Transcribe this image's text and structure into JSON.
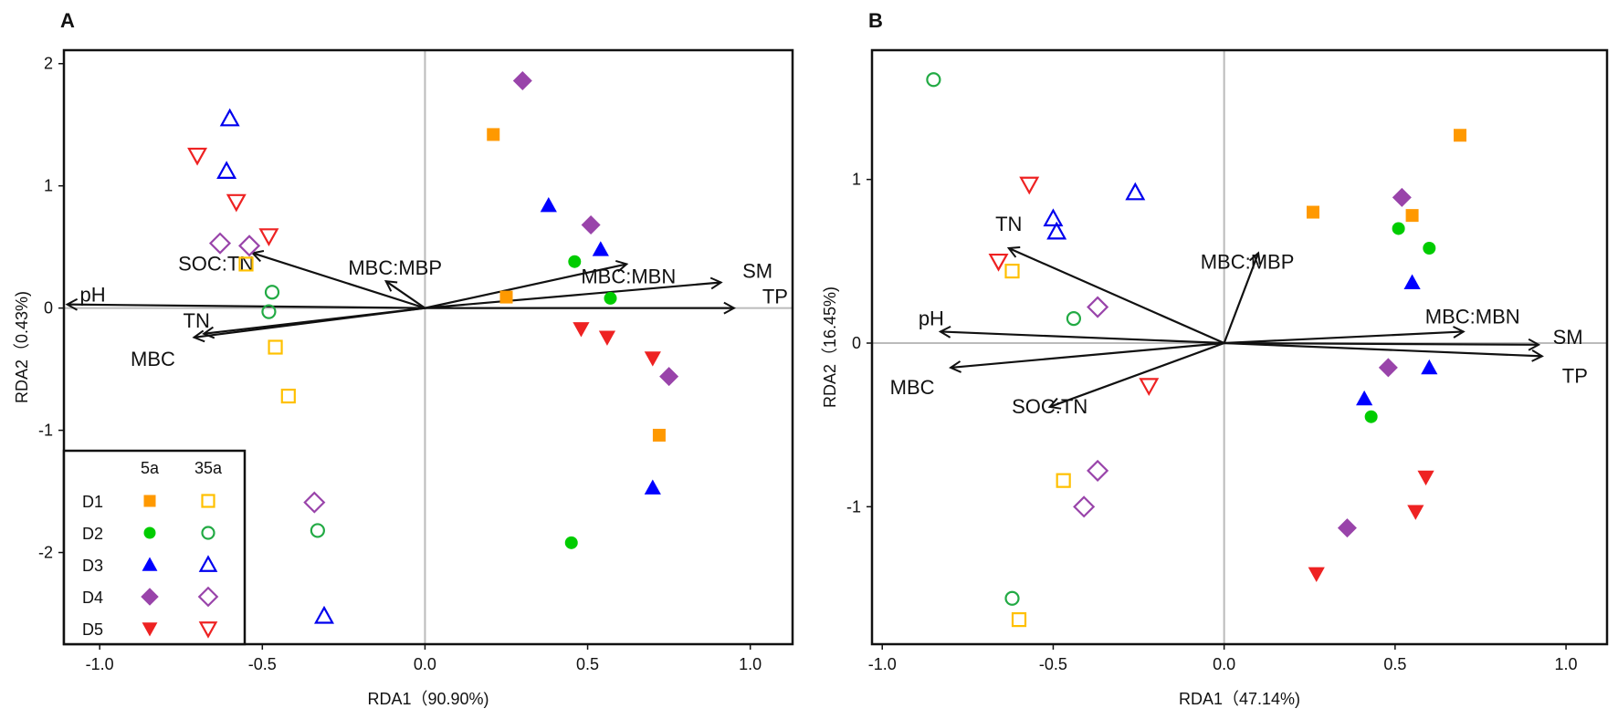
{
  "legend": {
    "col_headers": [
      "5a",
      "35a"
    ],
    "rows": [
      {
        "label": "D1",
        "shape": "square",
        "filled_color": "#FF9900",
        "open_color": "#FFC000"
      },
      {
        "label": "D2",
        "shape": "circle",
        "filled_color": "#00CC00",
        "open_color": "#22AA44"
      },
      {
        "label": "D3",
        "shape": "triangle-up",
        "filled_color": "#0000FF",
        "open_color": "#0000EE"
      },
      {
        "label": "D4",
        "shape": "diamond",
        "filled_color": "#9944AA",
        "open_color": "#9944AA"
      },
      {
        "label": "D5",
        "shape": "triangle-down",
        "filled_color": "#EE2222",
        "open_color": "#EE2222"
      }
    ],
    "placement": "bottom-left of panel A"
  },
  "chart_data": [
    {
      "type": "scatter",
      "panel": "A",
      "xlabel": "RDA1（90.90%)",
      "ylabel": "RDA2（0.43%)",
      "xlim": [
        -1.11,
        1.13
      ],
      "ylim": [
        -2.75,
        2.11
      ],
      "xticks": [
        "-1.0",
        "-0.5",
        "0.0",
        "0.5",
        "1.0"
      ],
      "yticks": [
        "-2",
        "-1",
        "0",
        "1",
        "2"
      ],
      "zero_lines": true,
      "grid": false,
      "series": [
        {
          "group": "D1",
          "age": "5a",
          "points": [
            [
              0.21,
              1.42
            ],
            [
              0.25,
              0.09
            ],
            [
              0.72,
              -1.04
            ]
          ]
        },
        {
          "group": "D1",
          "age": "35a",
          "points": [
            [
              -0.55,
              0.36
            ],
            [
              -0.46,
              -0.32
            ],
            [
              -0.42,
              -0.72
            ]
          ]
        },
        {
          "group": "D2",
          "age": "5a",
          "points": [
            [
              0.46,
              0.38
            ],
            [
              0.57,
              0.08
            ],
            [
              0.45,
              -1.92
            ]
          ]
        },
        {
          "group": "D2",
          "age": "35a",
          "points": [
            [
              -0.47,
              0.13
            ],
            [
              -0.48,
              -0.03
            ],
            [
              -0.33,
              -1.82
            ]
          ]
        },
        {
          "group": "D3",
          "age": "5a",
          "points": [
            [
              0.38,
              0.84
            ],
            [
              0.54,
              0.48
            ],
            [
              0.7,
              -1.47
            ]
          ]
        },
        {
          "group": "D3",
          "age": "35a",
          "points": [
            [
              -0.6,
              1.55
            ],
            [
              -0.61,
              1.12
            ],
            [
              -0.31,
              -2.52
            ]
          ]
        },
        {
          "group": "D4",
          "age": "5a",
          "points": [
            [
              0.3,
              1.86
            ],
            [
              0.51,
              0.68
            ],
            [
              0.75,
              -0.56
            ]
          ]
        },
        {
          "group": "D4",
          "age": "35a",
          "points": [
            [
              -0.63,
              0.53
            ],
            [
              -0.54,
              0.51
            ],
            [
              -0.34,
              -1.59
            ]
          ]
        },
        {
          "group": "D5",
          "age": "5a",
          "points": [
            [
              0.48,
              -0.17
            ],
            [
              0.56,
              -0.24
            ],
            [
              0.7,
              -0.41
            ]
          ]
        },
        {
          "group": "D5",
          "age": "35a",
          "points": [
            [
              -0.7,
              1.25
            ],
            [
              -0.58,
              0.87
            ],
            [
              -0.48,
              0.59
            ]
          ]
        }
      ],
      "arrows": [
        {
          "label": "pH",
          "x": -1.1,
          "y": 0.03
        },
        {
          "label": "TN",
          "x": -0.68,
          "y": -0.21
        },
        {
          "label": "MBC",
          "x": -0.71,
          "y": -0.24
        },
        {
          "label": "SOC:TN",
          "x": -0.53,
          "y": 0.45
        },
        {
          "label": "MBC:MBP",
          "x": -0.12,
          "y": 0.22
        },
        {
          "label": "MBC:MBN",
          "x": 0.62,
          "y": 0.36
        },
        {
          "label": "SM",
          "x": 0.91,
          "y": 0.21
        },
        {
          "label": "TP",
          "x": 0.95,
          "y": 0.0
        }
      ]
    },
    {
      "type": "scatter",
      "panel": "B",
      "xlabel": "RDA1（47.14%)",
      "ylabel": "RDA2（16.45%)",
      "xlim": [
        -1.03,
        1.12
      ],
      "ylim": [
        -1.84,
        1.79
      ],
      "xticks": [
        "-1.0",
        "-0.5",
        "0.0",
        "0.5",
        "1.0"
      ],
      "yticks": [
        "-1",
        "0",
        "1"
      ],
      "zero_lines": true,
      "grid": false,
      "series": [
        {
          "group": "D1",
          "age": "5a",
          "points": [
            [
              0.26,
              0.8
            ],
            [
              0.55,
              0.78
            ],
            [
              0.69,
              1.27
            ]
          ]
        },
        {
          "group": "D1",
          "age": "35a",
          "points": [
            [
              -0.62,
              0.44
            ],
            [
              -0.47,
              -0.84
            ],
            [
              -0.6,
              -1.69
            ]
          ]
        },
        {
          "group": "D2",
          "age": "5a",
          "points": [
            [
              0.51,
              0.7
            ],
            [
              0.6,
              0.58
            ],
            [
              0.43,
              -0.45
            ]
          ]
        },
        {
          "group": "D2",
          "age": "35a",
          "points": [
            [
              -0.85,
              1.61
            ],
            [
              -0.44,
              0.15
            ],
            [
              -0.62,
              -1.56
            ]
          ]
        },
        {
          "group": "D3",
          "age": "5a",
          "points": [
            [
              0.55,
              0.37
            ],
            [
              0.6,
              -0.15
            ],
            [
              0.41,
              -0.34
            ]
          ]
        },
        {
          "group": "D3",
          "age": "35a",
          "points": [
            [
              -0.5,
              0.76
            ],
            [
              -0.49,
              0.68
            ],
            [
              -0.26,
              0.92
            ]
          ]
        },
        {
          "group": "D4",
          "age": "5a",
          "points": [
            [
              0.52,
              0.89
            ],
            [
              0.48,
              -0.15
            ],
            [
              0.36,
              -1.13
            ]
          ]
        },
        {
          "group": "D4",
          "age": "35a",
          "points": [
            [
              -0.37,
              0.22
            ],
            [
              -0.37,
              -0.78
            ],
            [
              -0.41,
              -1.0
            ]
          ]
        },
        {
          "group": "D5",
          "age": "5a",
          "points": [
            [
              0.59,
              -0.82
            ],
            [
              0.56,
              -1.03
            ],
            [
              0.27,
              -1.41
            ]
          ]
        },
        {
          "group": "D5",
          "age": "35a",
          "points": [
            [
              -0.57,
              0.97
            ],
            [
              -0.66,
              0.5
            ],
            [
              -0.22,
              -0.26
            ]
          ]
        }
      ],
      "arrows": [
        {
          "label": "TN",
          "x": -0.63,
          "y": 0.58
        },
        {
          "label": "pH",
          "x": -0.83,
          "y": 0.07
        },
        {
          "label": "MBC",
          "x": -0.8,
          "y": -0.15
        },
        {
          "label": "SOC:TN",
          "x": -0.51,
          "y": -0.39
        },
        {
          "label": "MBC:MBP",
          "x": 0.1,
          "y": 0.55
        },
        {
          "label": "MBC:MBN",
          "x": 0.7,
          "y": 0.07
        },
        {
          "label": "SM",
          "x": 0.92,
          "y": -0.01
        },
        {
          "label": "TP",
          "x": 0.93,
          "y": -0.08
        }
      ]
    }
  ]
}
